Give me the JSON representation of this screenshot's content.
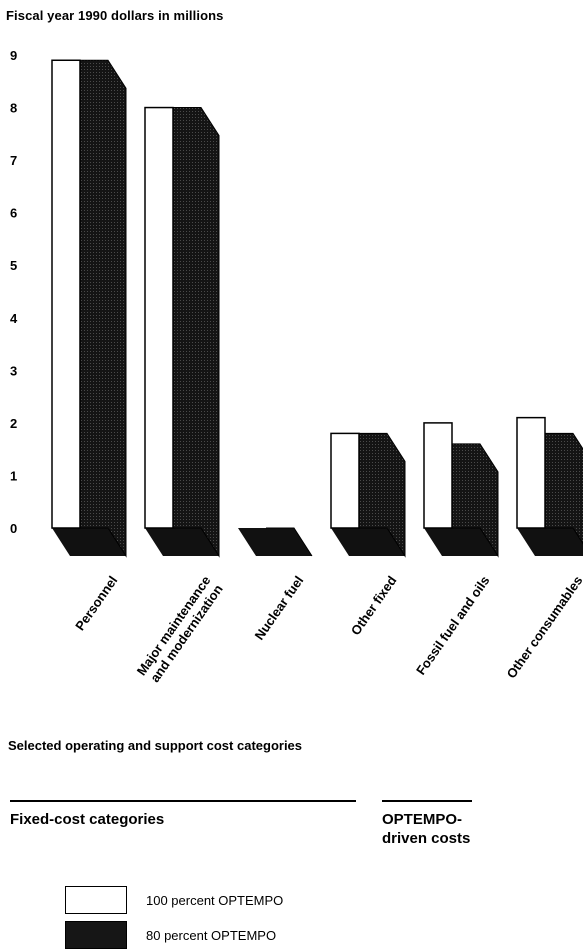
{
  "chart_data": {
    "type": "bar",
    "title": "",
    "ylabel": "Fiscal year 1990 dollars in millions",
    "xlabel": "Selected operating and support cost categories",
    "ylim": [
      0,
      9
    ],
    "yticks": [
      "0",
      "1",
      "2",
      "3",
      "4",
      "5",
      "6",
      "7",
      "8",
      "9"
    ],
    "categories": [
      "Personnel",
      "Major maintenance and modernization",
      "Nuclear fuel",
      "Other fixed",
      "Fossil fuel and oils",
      "Other consumables"
    ],
    "category_lines": [
      [
        "Personnel"
      ],
      [
        "Major maintenance",
        "and modernization"
      ],
      [
        "Nuclear fuel"
      ],
      [
        "Other fixed"
      ],
      [
        "Fossil fuel and oils"
      ],
      [
        "Other consumables"
      ]
    ],
    "series": [
      {
        "name": "100 percent OPTEMPO",
        "values": [
          8.9,
          8.0,
          0.0,
          1.8,
          2.0,
          2.1
        ],
        "color": "#ffffff"
      },
      {
        "name": "80 percent OPTEMPO",
        "values": [
          8.9,
          8.0,
          0.0,
          1.8,
          1.6,
          1.8
        ],
        "color": "#111111"
      }
    ],
    "grid": false,
    "legend": "bottom-left",
    "style": "3d-bars"
  },
  "groups": {
    "fixed": "Fixed-cost categories",
    "optempo_line1": "OPTEMPO-",
    "optempo_line2": "driven costs"
  }
}
